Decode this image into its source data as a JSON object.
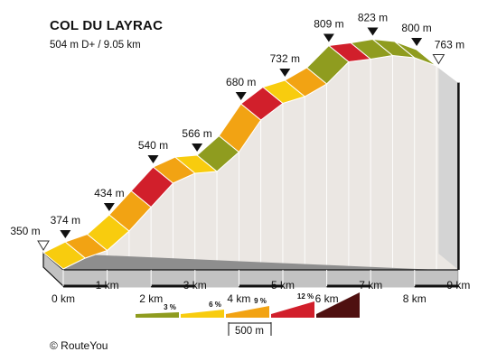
{
  "header": {
    "title": "COL DU LAYRAC",
    "subtitle": "504 m D+ / 9.05 km"
  },
  "footer": {
    "credit": "© RouteYou"
  },
  "chart_data": {
    "type": "area",
    "title": "COL DU LAYRAC",
    "subtitle": "504 m D+ / 9.05 km",
    "x_unit": "km",
    "y_unit": "m",
    "distance_total_km": 9.05,
    "elevation_gain_m": 504,
    "xlim": [
      0,
      9
    ],
    "x_ticks": [
      {
        "km": 0,
        "label": "0 km"
      },
      {
        "km": 1,
        "label": "1 km"
      },
      {
        "km": 2,
        "label": "2 km"
      },
      {
        "km": 3,
        "label": "3 km"
      },
      {
        "km": 4,
        "label": "4 km"
      },
      {
        "km": 5,
        "label": "5 km"
      },
      {
        "km": 6,
        "label": "6 km"
      },
      {
        "km": 7,
        "label": "7 km"
      },
      {
        "km": 8,
        "label": "8 km"
      },
      {
        "km": 9,
        "label": "9 km"
      }
    ],
    "elevation_markers": [
      {
        "km": 0,
        "elevation": 350,
        "label": "350 m",
        "kind": "start"
      },
      {
        "km": 0.5,
        "elevation": 374,
        "label": "374 m",
        "kind": "point"
      },
      {
        "km": 1.5,
        "elevation": 434,
        "label": "434 m",
        "kind": "point"
      },
      {
        "km": 2.5,
        "elevation": 540,
        "label": "540 m",
        "kind": "point"
      },
      {
        "km": 3.5,
        "elevation": 566,
        "label": "566 m",
        "kind": "point"
      },
      {
        "km": 4.5,
        "elevation": 680,
        "label": "680 m",
        "kind": "point"
      },
      {
        "km": 5.5,
        "elevation": 732,
        "label": "732 m",
        "kind": "point"
      },
      {
        "km": 6.5,
        "elevation": 809,
        "label": "809 m",
        "kind": "point"
      },
      {
        "km": 7.5,
        "elevation": 823,
        "label": "823 m",
        "kind": "point"
      },
      {
        "km": 8.5,
        "elevation": 800,
        "label": "800 m",
        "kind": "point"
      },
      {
        "km": 9,
        "elevation": 763,
        "label": "763 m",
        "kind": "end"
      }
    ],
    "profile": [
      {
        "km": 0.0,
        "elevation": 350
      },
      {
        "km": 0.5,
        "elevation": 374
      },
      {
        "km": 1.0,
        "elevation": 391
      },
      {
        "km": 1.5,
        "elevation": 434
      },
      {
        "km": 2.0,
        "elevation": 487
      },
      {
        "km": 2.5,
        "elevation": 540
      },
      {
        "km": 3.0,
        "elevation": 562
      },
      {
        "km": 3.5,
        "elevation": 566
      },
      {
        "km": 4.0,
        "elevation": 609
      },
      {
        "km": 4.5,
        "elevation": 680
      },
      {
        "km": 5.0,
        "elevation": 717
      },
      {
        "km": 5.5,
        "elevation": 732
      },
      {
        "km": 6.0,
        "elevation": 760
      },
      {
        "km": 6.5,
        "elevation": 809
      },
      {
        "km": 7.0,
        "elevation": 815
      },
      {
        "km": 7.5,
        "elevation": 823
      },
      {
        "km": 8.0,
        "elevation": 818
      },
      {
        "km": 8.5,
        "elevation": 800
      },
      {
        "km": 9.0,
        "elevation": 763
      }
    ],
    "segment_grade_class": [
      "c6",
      "c9",
      "c6",
      "c9",
      "c12",
      "c9",
      "c6",
      "c3",
      "c9",
      "c12",
      "c6",
      "c9",
      "c3",
      "c12",
      "c3",
      "c3",
      "c3",
      "c3"
    ],
    "grade_legend": [
      {
        "id": "c3",
        "label": "3 %",
        "color": "#8f9c1f"
      },
      {
        "id": "c6",
        "label": "6 %",
        "color": "#f8cc0e"
      },
      {
        "id": "c9",
        "label": "9 %",
        "color": "#f2a313"
      },
      {
        "id": "c12",
        "label": "12 %",
        "color": "#d11f2b"
      },
      {
        "id": "c15",
        "label": "",
        "color": "#4f1010"
      }
    ],
    "scale_bar_label": "500 m",
    "colors": {
      "c3": "#8f9c1f",
      "c6": "#f8cc0e",
      "c9": "#f2a313",
      "c12": "#d11f2b",
      "c15": "#4f1010",
      "wall": "#ebe7e3",
      "base_front": "#c2c2c2",
      "base_top": "#8e8e8e",
      "shadow_band": "#d4d4d4",
      "outline": "#111111"
    }
  }
}
